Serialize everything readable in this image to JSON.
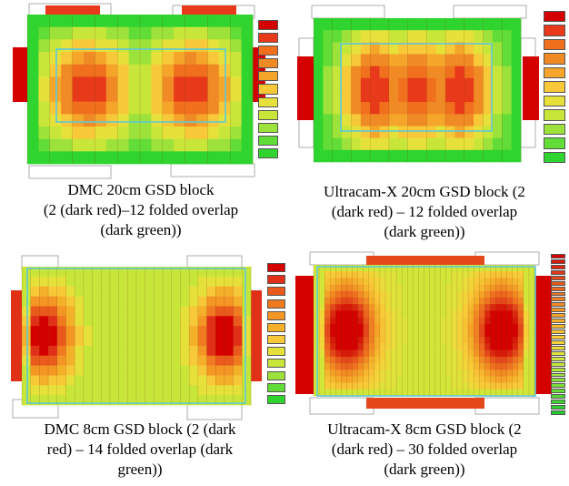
{
  "figure": {
    "panels": [
      {
        "id": "dmc-20cm",
        "caption_lines": [
          "DMC 20cm GSD block",
          "(2 (dark red)–12 folded overlap",
          "(dark green))"
        ],
        "legend_colors": [
          "#d40000",
          "#e83a1a",
          "#f0701e",
          "#f08a24",
          "#f5a52a",
          "#f7c838",
          "#e6e13a",
          "#c8e63a",
          "#9de23a",
          "#62dc36",
          "#2fd42e"
        ]
      },
      {
        "id": "ultracam-20cm",
        "caption_lines": [
          "Ultracam-X 20cm GSD block (2",
          "(dark red) – 12 folded overlap",
          "(dark green))"
        ],
        "legend_colors": [
          "#d40000",
          "#e83a1a",
          "#f0701e",
          "#f08a24",
          "#f5a52a",
          "#f7c838",
          "#e6e13a",
          "#c8e63a",
          "#9de23a",
          "#62dc36",
          "#2fd42e"
        ]
      },
      {
        "id": "dmc-8cm",
        "caption_lines": [
          "DMC 8cm GSD block (2 (dark",
          "red) – 14 folded overlap (dark",
          "green))"
        ],
        "legend_colors": [
          "#d40000",
          "#e03018",
          "#ea5a1c",
          "#f07a20",
          "#f39624",
          "#f5b02a",
          "#f7c838",
          "#e6e13a",
          "#c8e63a",
          "#9de23a",
          "#62dc36",
          "#2fd42e"
        ]
      },
      {
        "id": "ultracam-8cm",
        "caption_lines": [
          "Ultracam-X 8cm GSD block (2",
          "(dark red) – 30 folded overlap",
          "(dark green))"
        ],
        "legend_colors": [
          "#d40000",
          "#d81808",
          "#dc2810",
          "#e03818",
          "#e4481a",
          "#e8581c",
          "#ec661e",
          "#ee7220",
          "#f07e22",
          "#f28a24",
          "#f39626",
          "#f4a228",
          "#f5ae2a",
          "#f6b82e",
          "#f7c234",
          "#f7cc38",
          "#f2d43a",
          "#eadc3a",
          "#dfe23a",
          "#d2e63a",
          "#c4e83a",
          "#b4e63a",
          "#a2e43a",
          "#8fe23a",
          "#7cde38",
          "#68da36",
          "#55d634",
          "#42d232",
          "#30ce30",
          "#22ca2e"
        ]
      }
    ]
  }
}
